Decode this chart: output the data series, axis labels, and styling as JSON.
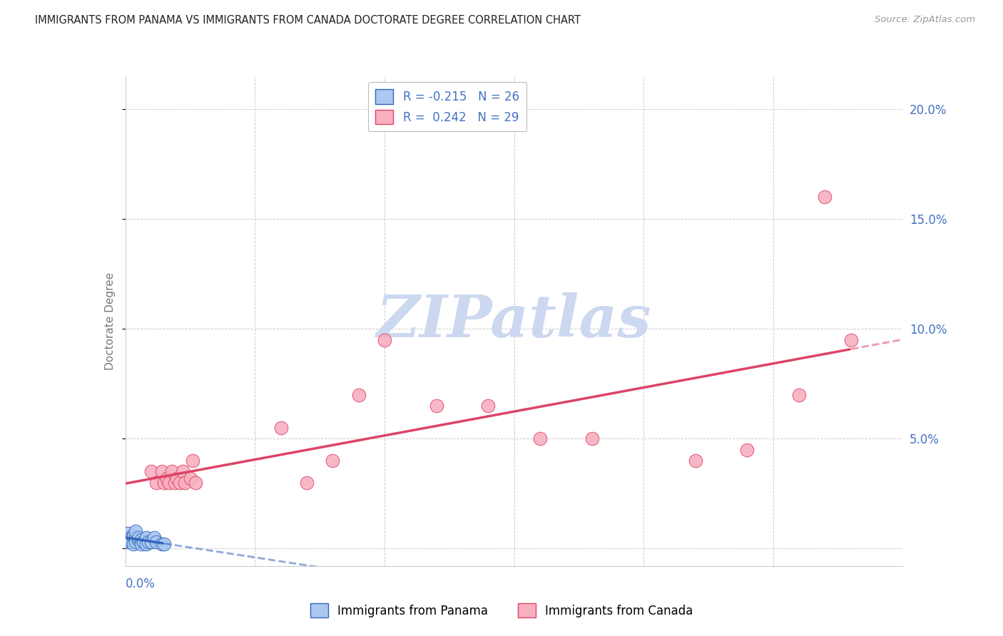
{
  "title": "IMMIGRANTS FROM PANAMA VS IMMIGRANTS FROM CANADA DOCTORATE DEGREE CORRELATION CHART",
  "source": "Source: ZipAtlas.com",
  "ylabel": "Doctorate Degree",
  "xlim": [
    0.0,
    0.3
  ],
  "ylim": [
    -0.008,
    0.215
  ],
  "panama_R": -0.215,
  "panama_N": 26,
  "canada_R": 0.242,
  "canada_N": 29,
  "panama_color": "#aac8f0",
  "canada_color": "#f8b0c0",
  "panama_line_color": "#3366bb",
  "canada_line_color": "#dd4466",
  "watermark_color": "#ccd8f0",
  "grid_color": "#cccccc",
  "bg_color": "#ffffff",
  "title_color": "#222222",
  "right_axis_color": "#4472c4",
  "legend_panama": "Immigrants from Panama",
  "legend_canada": "Immigrants from Canada",
  "panama_x": [
    0.001,
    0.001,
    0.001,
    0.002,
    0.002,
    0.002,
    0.003,
    0.003,
    0.003,
    0.004,
    0.004,
    0.004,
    0.005,
    0.005,
    0.006,
    0.006,
    0.007,
    0.007,
    0.008,
    0.008,
    0.009,
    0.01,
    0.011,
    0.012,
    0.014,
    0.015
  ],
  "panama_y": [
    0.005,
    0.007,
    0.003,
    0.005,
    0.004,
    0.003,
    0.005,
    0.006,
    0.002,
    0.005,
    0.008,
    0.003,
    0.004,
    0.005,
    0.004,
    0.002,
    0.003,
    0.003,
    0.005,
    0.002,
    0.003,
    0.003,
    0.005,
    0.003,
    0.002,
    0.002
  ],
  "canada_x": [
    0.01,
    0.012,
    0.014,
    0.015,
    0.016,
    0.017,
    0.018,
    0.019,
    0.02,
    0.021,
    0.022,
    0.023,
    0.025,
    0.026,
    0.027,
    0.06,
    0.07,
    0.08,
    0.09,
    0.1,
    0.12,
    0.14,
    0.16,
    0.18,
    0.22,
    0.24,
    0.26,
    0.27,
    0.28
  ],
  "canada_y": [
    0.035,
    0.03,
    0.035,
    0.03,
    0.032,
    0.03,
    0.035,
    0.03,
    0.032,
    0.03,
    0.035,
    0.03,
    0.032,
    0.04,
    0.03,
    0.055,
    0.03,
    0.04,
    0.07,
    0.095,
    0.065,
    0.065,
    0.05,
    0.05,
    0.04,
    0.045,
    0.07,
    0.16,
    0.095
  ],
  "yticks": [
    0.0,
    0.05,
    0.1,
    0.15,
    0.2
  ],
  "xticks": [
    0.0,
    0.05,
    0.1,
    0.15,
    0.2,
    0.25,
    0.3
  ]
}
